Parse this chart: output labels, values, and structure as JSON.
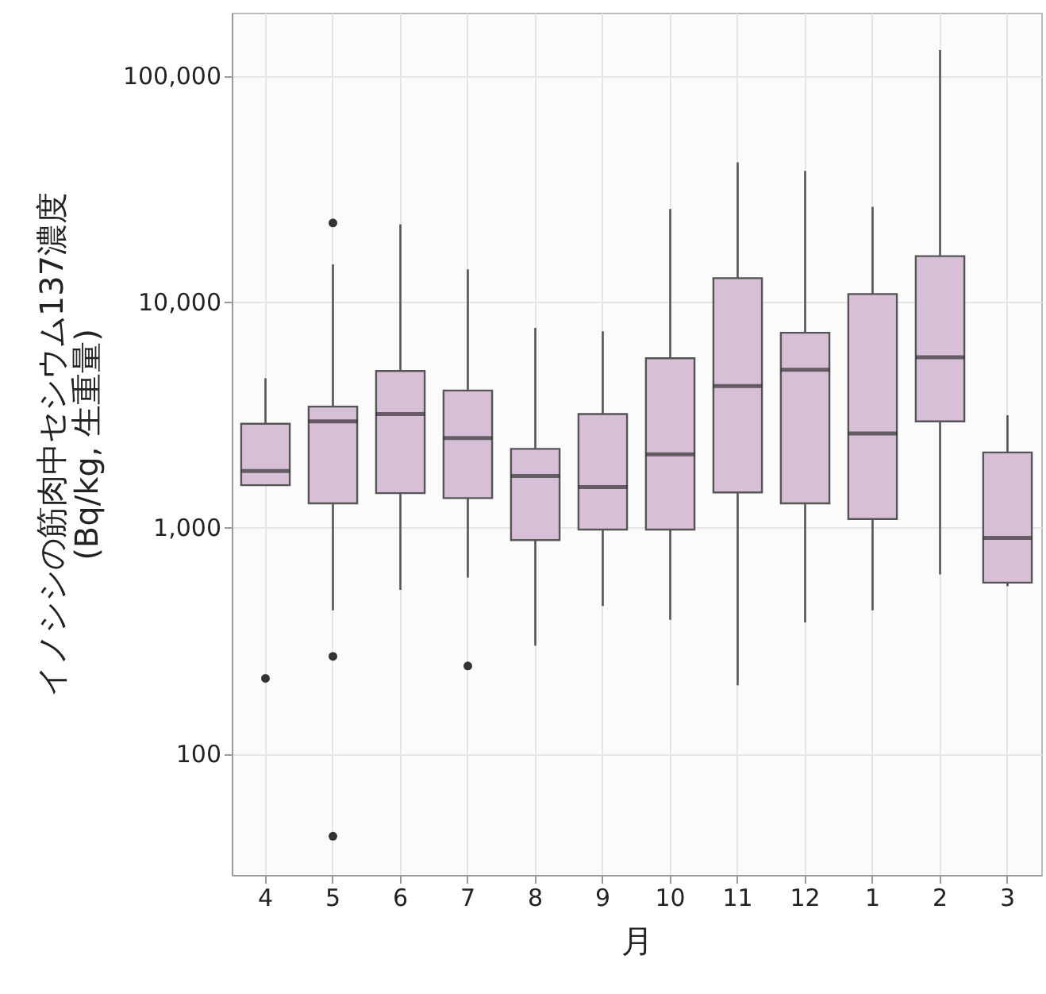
{
  "chart_data": {
    "type": "box",
    "xlabel": "月",
    "ylabel": "イノシシの筋肉中セシウム137濃度\n(Bq/kg, 生重量)",
    "categories": [
      "4",
      "5",
      "6",
      "7",
      "8",
      "9",
      "10",
      "11",
      "12",
      "1",
      "2",
      "3"
    ],
    "log": "y",
    "ylim": [
      29,
      190000
    ],
    "yticks": [
      100,
      {
        "value": 1000,
        "label": "1,000"
      },
      {
        "value": 10000,
        "label": "10,000"
      },
      {
        "value": 100000,
        "label": "100,000"
      }
    ],
    "grid": true,
    "series": [
      {
        "color": "#d8bfd8",
        "boxes": [
          {
            "low": 1540,
            "q1": 1540,
            "median": 1780,
            "q3": 2880,
            "high": 4580,
            "outliers": [
              215
            ]
          },
          {
            "low": 430,
            "q1": 1280,
            "median": 2950,
            "q3": 3430,
            "high": 14600,
            "outliers": [
              22300,
              269,
              43
            ]
          },
          {
            "low": 530,
            "q1": 1420,
            "median": 3180,
            "q3": 4930,
            "high": 22000
          },
          {
            "low": 600,
            "q1": 1350,
            "median": 2490,
            "q3": 4040,
            "high": 13900,
            "outliers": [
              244
            ]
          },
          {
            "low": 300,
            "q1": 880,
            "median": 1690,
            "q3": 2230,
            "high": 7650
          },
          {
            "low": 450,
            "q1": 980,
            "median": 1510,
            "q3": 3180,
            "high": 7390
          },
          {
            "low": 390,
            "q1": 980,
            "median": 2110,
            "q3": 5610,
            "high": 25700
          },
          {
            "low": 200,
            "q1": 1430,
            "median": 4230,
            "q3": 12700,
            "high": 41300
          },
          {
            "low": 380,
            "q1": 1280,
            "median": 4990,
            "q3": 7280,
            "high": 37900
          },
          {
            "low": 430,
            "q1": 1090,
            "median": 2610,
            "q3": 10800,
            "high": 26300
          },
          {
            "low": 620,
            "q1": 2950,
            "median": 5670,
            "q3": 15900,
            "high": 130000
          },
          {
            "low": 550,
            "q1": 570,
            "median": 900,
            "q3": 2150,
            "high": 3140
          }
        ]
      }
    ]
  }
}
